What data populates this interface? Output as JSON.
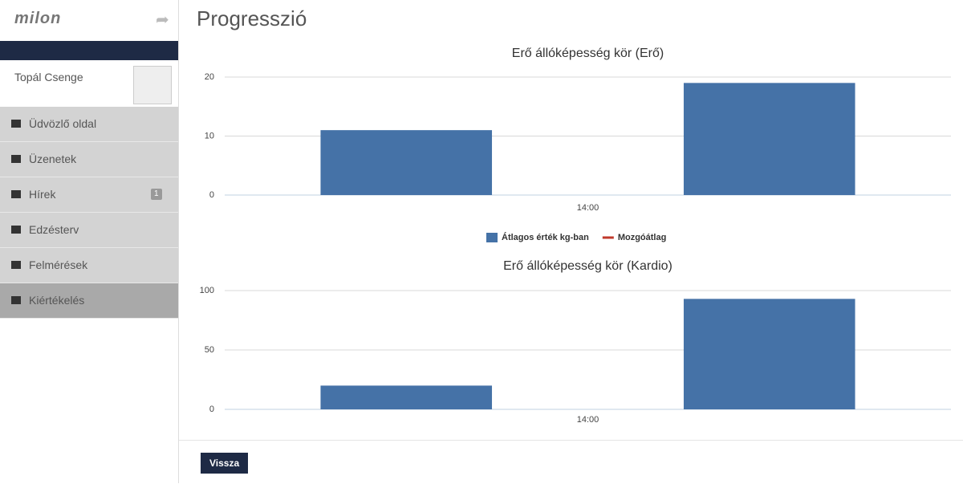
{
  "sidebar": {
    "logo": "milon",
    "user": "Topál Csenge",
    "menu": [
      {
        "label": "Üdvözlő oldal"
      },
      {
        "label": "Üzenetek"
      },
      {
        "label": "Hírek",
        "badge": "1"
      },
      {
        "label": "Edzésterv"
      },
      {
        "label": "Felmérések"
      },
      {
        "label": "Kiértékelés"
      }
    ]
  },
  "header": {
    "title": "Progresszió"
  },
  "button": "Vissza",
  "chart_data": [
    {
      "type": "bar",
      "title": "Erő állóképesség kör (Erő)",
      "categories": [
        null,
        null
      ],
      "x_tick_label": "14:00",
      "series": [
        {
          "name": "Átlagos érték kg-ban",
          "type": "bar",
          "color": "#4572a7",
          "values": [
            11,
            19
          ]
        },
        {
          "name": "Mozgóátlag",
          "type": "line",
          "color": "#c0392b",
          "values": [
            null,
            null
          ]
        }
      ],
      "ylim": [
        0,
        20
      ],
      "yticks": [
        0,
        10,
        20
      ],
      "grid": true,
      "legend": true
    },
    {
      "type": "bar",
      "title": "Erő állóképesség kör (Kardio)",
      "categories": [
        null,
        null
      ],
      "x_tick_label": "14:00",
      "series": [
        {
          "name": "Átlagos érték kg-ban",
          "type": "bar",
          "color": "#4572a7",
          "values": [
            20,
            93
          ]
        },
        {
          "name": "Mozgóátlag",
          "type": "line",
          "color": "#c0392b",
          "values": [
            null,
            null
          ]
        }
      ],
      "ylim": [
        0,
        100
      ],
      "yticks": [
        0,
        50,
        100
      ],
      "grid": true,
      "legend": false
    }
  ]
}
